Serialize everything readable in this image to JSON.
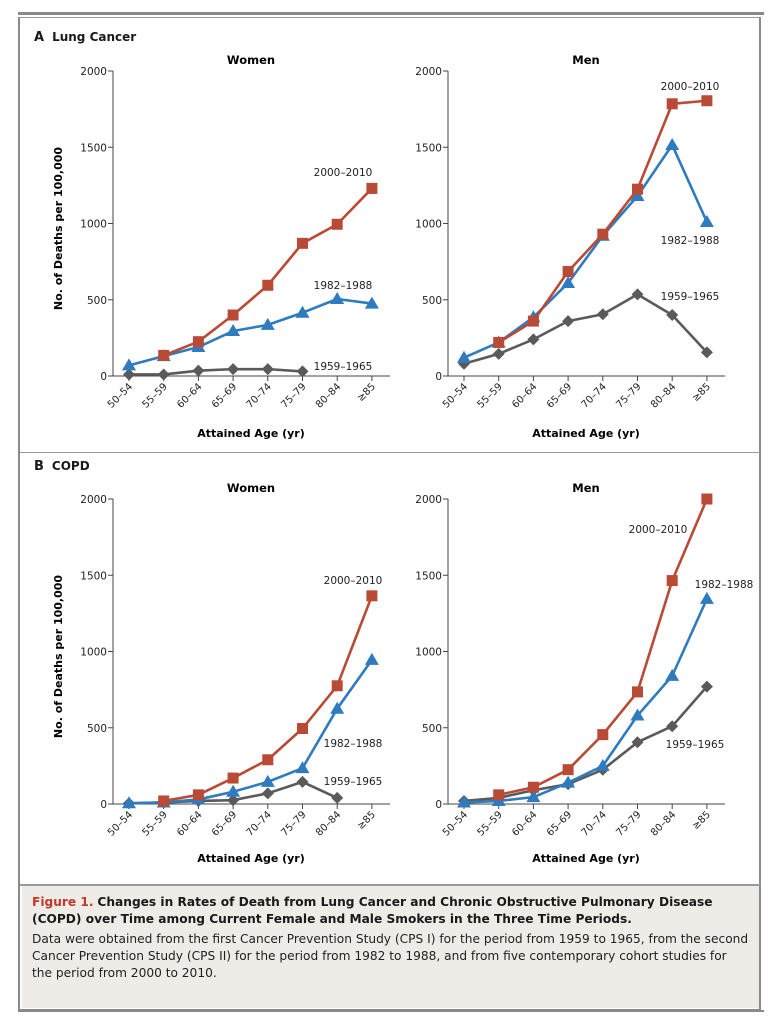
{
  "panels": [
    {
      "letter": "A",
      "title": "Lung Cancer"
    },
    {
      "letter": "B",
      "title": "COPD"
    }
  ],
  "series_styles": {
    "2000–2010": {
      "color": "#b94a35",
      "marker": "square"
    },
    "1982–1988": {
      "color": "#2f7bbf",
      "marker": "triangle"
    },
    "1959–1965": {
      "color": "#5a5a5a",
      "marker": "diamond"
    }
  },
  "caption": {
    "figure_number": "Figure 1.",
    "title": "Changes in Rates of Death from Lung Cancer and Chronic Obstructive Pulmonary Disease (COPD) over Time among Current Female and Male Smokers in the Three Time Periods.",
    "body": "Data were obtained from the first Cancer Prevention Study (CPS I) for the period from 1959 to 1965, from the second Cancer Prevention Study (CPS II) for the period from 1982 to 1988, and from five contemporary cohort studies for the period from 2000 to 2010."
  },
  "chart_data": [
    {
      "type": "line",
      "panel": "A",
      "title": "Women",
      "xlabel": "Attained Age (yr)",
      "ylabel": "No. of Deaths per 100,000",
      "categories": [
        "50–54",
        "55–59",
        "60–64",
        "65–69",
        "70–74",
        "75–79",
        "80–84",
        "≥85"
      ],
      "ylim": [
        0,
        2000
      ],
      "yticks": [
        0,
        500,
        1000,
        1500,
        2000
      ],
      "grid": false,
      "series": [
        {
          "name": "2000–2010",
          "values": [
            null,
            135,
            225,
            400,
            595,
            870,
            995,
            1230
          ]
        },
        {
          "name": "1982–1988",
          "values": [
            70,
            130,
            190,
            295,
            335,
            415,
            505,
            475
          ]
        },
        {
          "name": "1959–1965",
          "values": [
            10,
            10,
            35,
            45,
            45,
            30,
            null,
            null
          ]
        }
      ],
      "annotations": [
        {
          "text": "2000–2010",
          "near": "≥85 upper-left"
        },
        {
          "text": "1982–1988",
          "near": "80–84 above"
        },
        {
          "text": "1959–1965",
          "near": "80–84 right of end"
        }
      ]
    },
    {
      "type": "line",
      "panel": "A",
      "title": "Men",
      "xlabel": "Attained Age (yr)",
      "ylabel": "",
      "categories": [
        "50–54",
        "55–59",
        "60–64",
        "65–69",
        "70–74",
        "75–79",
        "80–84",
        "≥85"
      ],
      "ylim": [
        0,
        2000
      ],
      "yticks": [
        0,
        500,
        1000,
        1500,
        2000
      ],
      "grid": false,
      "series": [
        {
          "name": "2000–2010",
          "values": [
            null,
            220,
            360,
            685,
            930,
            1225,
            1785,
            1805
          ]
        },
        {
          "name": "1982–1988",
          "values": [
            120,
            220,
            385,
            610,
            920,
            1180,
            1515,
            1010
          ]
        },
        {
          "name": "1959–1965",
          "values": [
            80,
            145,
            240,
            360,
            405,
            535,
            400,
            155
          ]
        }
      ],
      "annotations": [
        {
          "text": "2000–2010",
          "near": "top-right"
        },
        {
          "text": "1982–1988",
          "near": "≥85 below"
        },
        {
          "text": "1959–1965",
          "near": "80–84 above"
        }
      ]
    },
    {
      "type": "line",
      "panel": "B",
      "title": "Women",
      "xlabel": "Attained Age (yr)",
      "ylabel": "No. of Deaths per 100,000",
      "categories": [
        "50–54",
        "55–59",
        "60–64",
        "65–69",
        "70–74",
        "75–79",
        "80–84",
        "≥85"
      ],
      "ylim": [
        0,
        2000
      ],
      "yticks": [
        0,
        500,
        1000,
        1500,
        2000
      ],
      "grid": false,
      "series": [
        {
          "name": "2000–2010",
          "values": [
            null,
            20,
            60,
            170,
            290,
            495,
            775,
            1365
          ]
        },
        {
          "name": "1982–1988",
          "values": [
            5,
            10,
            30,
            80,
            145,
            235,
            625,
            945
          ]
        },
        {
          "name": "1959–1965",
          "values": [
            5,
            10,
            20,
            25,
            70,
            145,
            40,
            null
          ]
        }
      ],
      "annotations": [
        {
          "text": "2000–2010",
          "near": "≥85 above"
        },
        {
          "text": "1982–1988",
          "near": "80–84 right"
        },
        {
          "text": "1959–1965",
          "near": "80–84 above"
        }
      ]
    },
    {
      "type": "line",
      "panel": "B",
      "title": "Men",
      "xlabel": "Attained Age (yr)",
      "ylabel": "",
      "categories": [
        "50–54",
        "55–59",
        "60–64",
        "65–69",
        "70–74",
        "75–79",
        "80–84",
        "≥85"
      ],
      "ylim": [
        0,
        2000
      ],
      "yticks": [
        0,
        500,
        1000,
        1500,
        2000
      ],
      "grid": false,
      "series": [
        {
          "name": "2000–2010",
          "values": [
            null,
            60,
            110,
            225,
            455,
            735,
            1465,
            2000
          ]
        },
        {
          "name": "1982–1988",
          "values": [
            10,
            20,
            45,
            140,
            250,
            580,
            840,
            1345
          ]
        },
        {
          "name": "1959–1965",
          "values": [
            20,
            40,
            90,
            130,
            225,
            405,
            510,
            770
          ]
        }
      ],
      "annotations": [
        {
          "text": "2000–2010",
          "near": "left of 80–84"
        },
        {
          "text": "1982–1988",
          "near": "≥85 above"
        },
        {
          "text": "1959–1965",
          "near": "80–84 below"
        }
      ]
    }
  ]
}
